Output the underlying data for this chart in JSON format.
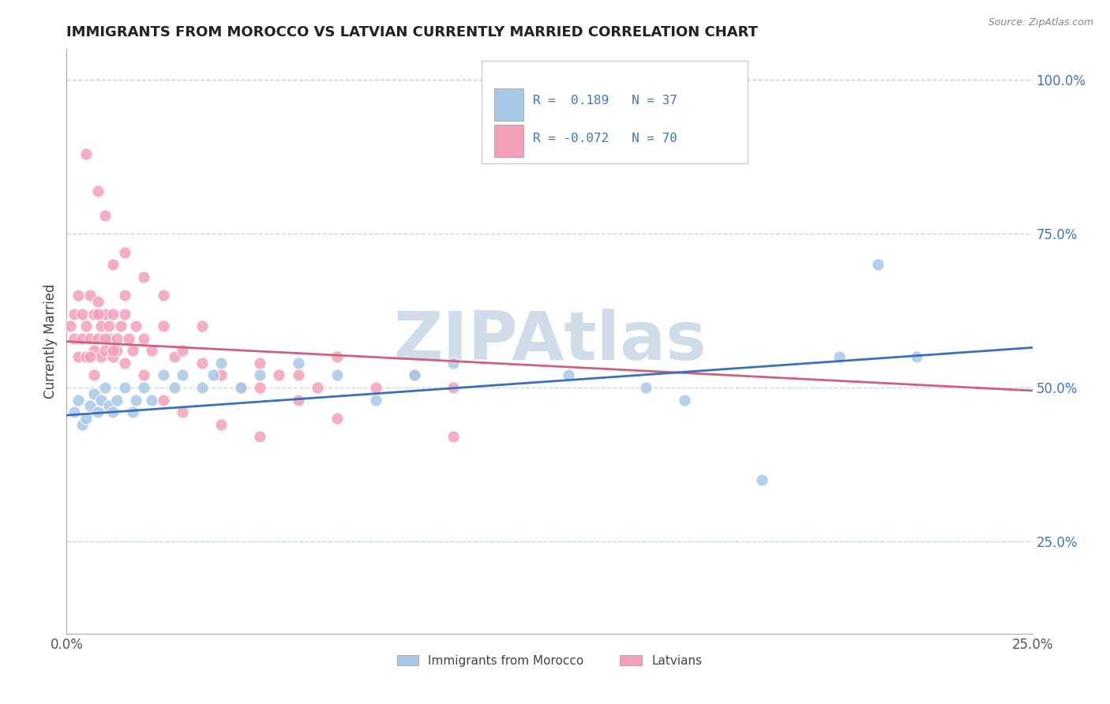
{
  "title": "IMMIGRANTS FROM MOROCCO VS LATVIAN CURRENTLY MARRIED CORRELATION CHART",
  "source_text": "Source: ZipAtlas.com",
  "ylabel": "Currently Married",
  "xlim": [
    0.0,
    0.25
  ],
  "ylim": [
    0.1,
    1.05
  ],
  "x_tick_positions": [
    0.0,
    0.05,
    0.1,
    0.15,
    0.2,
    0.25
  ],
  "x_tick_labels": [
    "0.0%",
    "",
    "",
    "",
    "",
    "25.0%"
  ],
  "y_ticks_right": [
    0.25,
    0.5,
    0.75,
    1.0
  ],
  "y_tick_labels_right": [
    "25.0%",
    "50.0%",
    "75.0%",
    "100.0%"
  ],
  "blue_color": "#a8c8e8",
  "pink_color": "#f4a0b8",
  "trend_blue": "#3a6fbd",
  "trend_pink": "#d06080",
  "watermark": "ZIPAtlas",
  "watermark_color": "#d0dde8",
  "background_color": "#ffffff",
  "title_color": "#222222",
  "legend_text_color": "#4472c4",
  "grid_color": "#c8d8e8",
  "morocco_scatter_x": [
    0.002,
    0.003,
    0.004,
    0.005,
    0.006,
    0.007,
    0.008,
    0.009,
    0.01,
    0.011,
    0.012,
    0.013,
    0.015,
    0.017,
    0.018,
    0.02,
    0.022,
    0.025,
    0.028,
    0.03,
    0.035,
    0.038,
    0.04,
    0.045,
    0.05,
    0.06,
    0.07,
    0.08,
    0.09,
    0.1,
    0.13,
    0.15,
    0.2,
    0.22,
    0.18,
    0.16,
    0.21
  ],
  "morocco_scatter_y": [
    0.46,
    0.48,
    0.44,
    0.45,
    0.47,
    0.49,
    0.46,
    0.48,
    0.5,
    0.47,
    0.46,
    0.48,
    0.5,
    0.46,
    0.48,
    0.5,
    0.48,
    0.52,
    0.5,
    0.52,
    0.5,
    0.52,
    0.54,
    0.5,
    0.52,
    0.54,
    0.52,
    0.48,
    0.52,
    0.54,
    0.52,
    0.5,
    0.55,
    0.55,
    0.35,
    0.48,
    0.7
  ],
  "latvian_scatter_x": [
    0.001,
    0.002,
    0.002,
    0.003,
    0.003,
    0.004,
    0.004,
    0.005,
    0.005,
    0.006,
    0.006,
    0.007,
    0.007,
    0.008,
    0.008,
    0.009,
    0.009,
    0.01,
    0.01,
    0.011,
    0.011,
    0.012,
    0.012,
    0.013,
    0.013,
    0.014,
    0.015,
    0.016,
    0.017,
    0.018,
    0.02,
    0.022,
    0.025,
    0.028,
    0.03,
    0.035,
    0.04,
    0.045,
    0.05,
    0.055,
    0.06,
    0.065,
    0.07,
    0.08,
    0.09,
    0.1,
    0.006,
    0.007,
    0.008,
    0.01,
    0.012,
    0.015,
    0.02,
    0.025,
    0.03,
    0.04,
    0.05,
    0.005,
    0.008,
    0.01,
    0.015,
    0.02,
    0.025,
    0.035,
    0.05,
    0.06,
    0.07,
    0.1,
    0.012,
    0.015
  ],
  "latvian_scatter_y": [
    0.6,
    0.62,
    0.58,
    0.65,
    0.55,
    0.62,
    0.58,
    0.6,
    0.55,
    0.65,
    0.58,
    0.62,
    0.56,
    0.64,
    0.58,
    0.6,
    0.55,
    0.62,
    0.56,
    0.58,
    0.6,
    0.55,
    0.62,
    0.58,
    0.56,
    0.6,
    0.62,
    0.58,
    0.56,
    0.6,
    0.58,
    0.56,
    0.6,
    0.55,
    0.56,
    0.54,
    0.52,
    0.5,
    0.54,
    0.52,
    0.52,
    0.5,
    0.55,
    0.5,
    0.52,
    0.5,
    0.55,
    0.52,
    0.62,
    0.58,
    0.56,
    0.54,
    0.52,
    0.48,
    0.46,
    0.44,
    0.42,
    0.88,
    0.82,
    0.78,
    0.72,
    0.68,
    0.65,
    0.6,
    0.5,
    0.48,
    0.45,
    0.42,
    0.7,
    0.65
  ],
  "trend_blue_y0": 0.455,
  "trend_blue_y1": 0.565,
  "trend_pink_y0": 0.575,
  "trend_pink_y1": 0.495
}
